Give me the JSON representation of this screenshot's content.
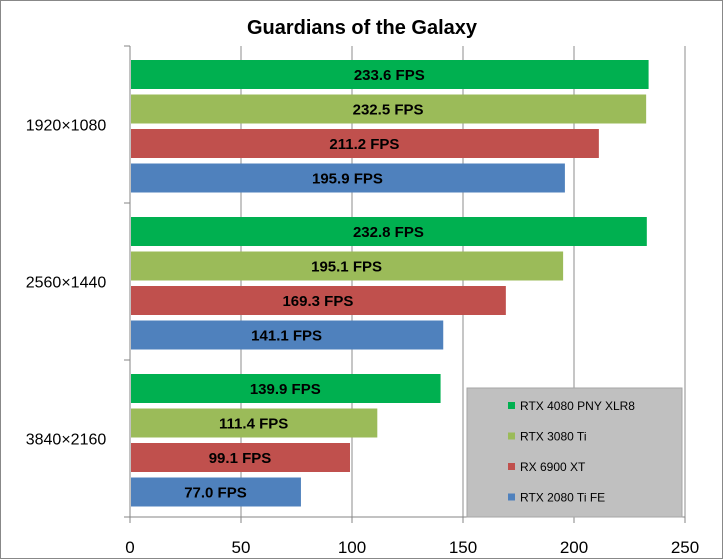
{
  "chart_data": {
    "type": "bar",
    "orientation": "horizontal",
    "title": "Guardians of the Galaxy",
    "xlabel": "",
    "ylabel": "",
    "xlim": [
      0,
      250
    ],
    "xticks": [
      "0",
      "50",
      "100",
      "150",
      "200",
      "250"
    ],
    "grid": true,
    "legend_position": "bottom-right",
    "categories": [
      "1920×1080",
      "2560×1440",
      "3840×2160"
    ],
    "series": [
      {
        "name": "RTX 4080 PNY XLR8",
        "color": "#00b050",
        "values": [
          233.6,
          232.8,
          139.9
        ],
        "labels": [
          "233.6 FPS",
          "232.8 FPS",
          "139.9 FPS"
        ]
      },
      {
        "name": "RTX 3080 Ti",
        "color": "#9bbb59",
        "values": [
          232.5,
          195.1,
          111.4
        ],
        "labels": [
          "232.5 FPS",
          "195.1 FPS",
          "111.4 FPS"
        ]
      },
      {
        "name": "RX 6900 XT",
        "color": "#c0504d",
        "values": [
          211.2,
          169.3,
          99.1
        ],
        "labels": [
          "211.2 FPS",
          "169.3 FPS",
          "99.1 FPS"
        ]
      },
      {
        "name": "RTX 2080 Ti FE",
        "color": "#4f81bd",
        "values": [
          195.9,
          141.1,
          77.0
        ],
        "labels": [
          "195.9 FPS",
          "141.1 FPS",
          "77.0 FPS"
        ]
      }
    ]
  }
}
